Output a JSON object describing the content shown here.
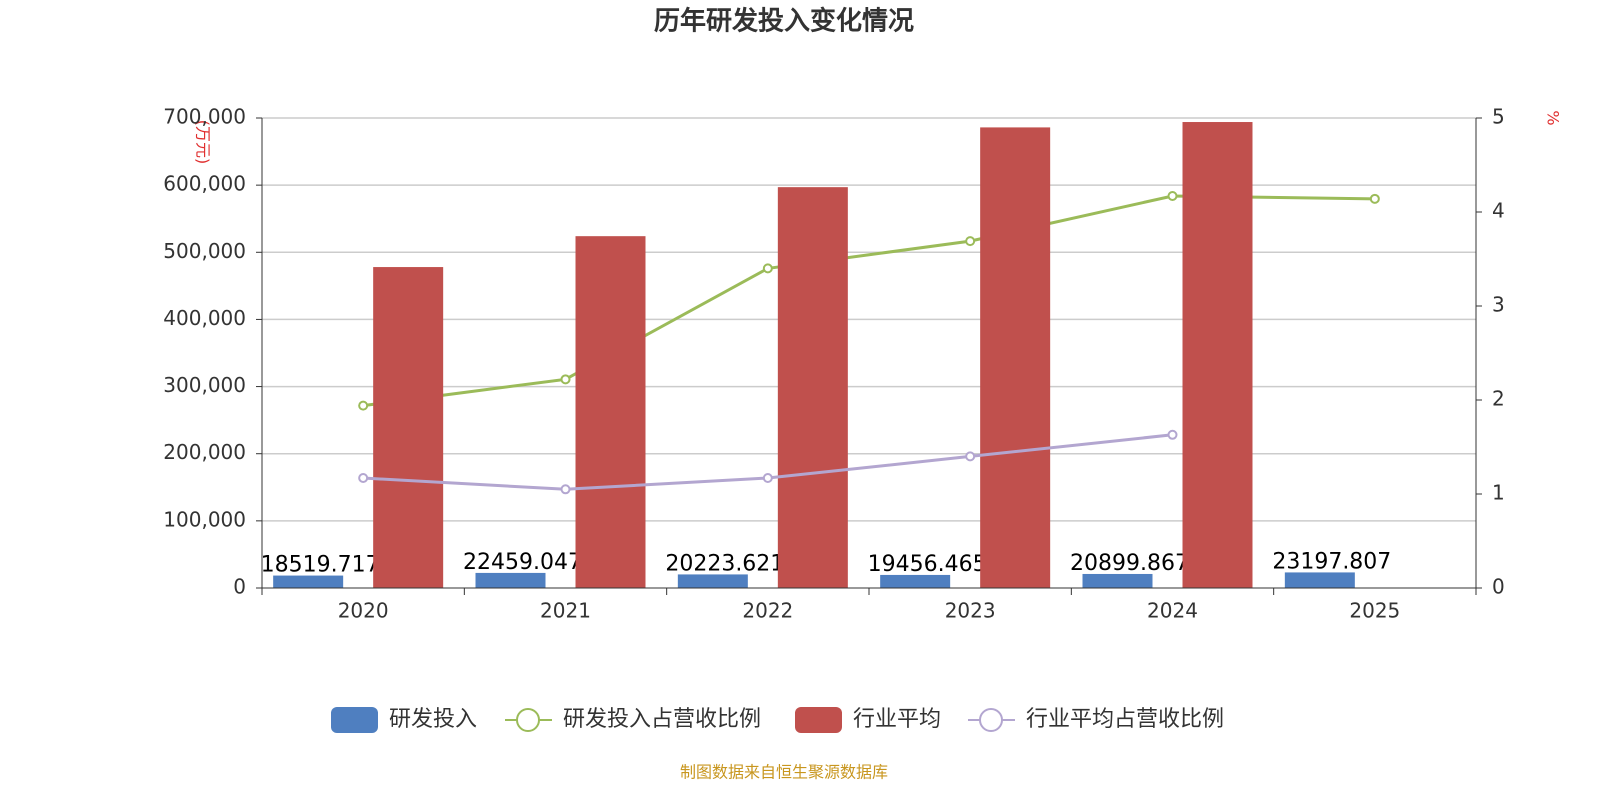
{
  "chart_data": {
    "type": "bar",
    "title": "历年研发投入变化情况",
    "y_label": "(万元)",
    "y2_label": "%",
    "source": "制图数据来自恒生聚源数据库",
    "categories": [
      "2020",
      "2021",
      "2022",
      "2023",
      "2024",
      "2025"
    ],
    "series": [
      {
        "name": "研发投入",
        "type": "bar",
        "color": "#4f7fc0",
        "values": [
          18519.717,
          22459.047,
          20223.621,
          19456.465,
          20899.867,
          23197.807
        ]
      },
      {
        "name": "研发投入占营收比例",
        "type": "line",
        "axis": "y2",
        "color": "#9bbb59",
        "values": [
          1.94,
          2.22,
          3.4,
          3.69,
          4.17,
          4.14
        ]
      },
      {
        "name": "行业平均",
        "type": "bar",
        "color": "#c0504d",
        "values": [
          478000,
          524000,
          597000,
          686000,
          694000,
          null
        ]
      },
      {
        "name": "行业平均占营收比例",
        "type": "line",
        "axis": "y2",
        "color": "#b3a6d0",
        "values": [
          1.17,
          1.05,
          1.17,
          1.4,
          1.63,
          null
        ]
      }
    ],
    "ylim": [
      0,
      700000
    ],
    "yticks": [
      0,
      {
        "value": 100000,
        "label": "100,000"
      },
      {
        "value": 200000,
        "label": "200,000"
      },
      {
        "value": 300000,
        "label": "300,000"
      },
      {
        "value": 400000,
        "label": "400,000"
      },
      {
        "value": 500000,
        "label": "500,000"
      },
      {
        "value": 600000,
        "label": "600,000"
      },
      {
        "value": 700000,
        "label": "700,000"
      }
    ],
    "y2lim": [
      0,
      5
    ],
    "y2ticks": [
      0,
      1,
      2,
      3,
      4,
      5
    ],
    "grid": true
  }
}
